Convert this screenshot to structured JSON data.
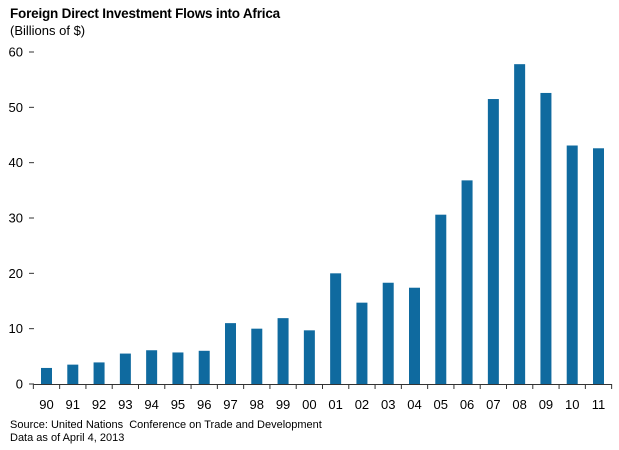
{
  "title": "Foreign Direct Investment Flows into Africa",
  "subtitle": "(Billions of $)",
  "source_line": "Source: United Nations  Conference on Trade and Development",
  "data_note": "Data as of April 4, 2013",
  "colors": {
    "bar": "#0f6a9f",
    "axis": "#333333",
    "grid": "#d0d0d0"
  },
  "chart_data": {
    "type": "bar",
    "title": "Foreign Direct Investment Flows into Africa",
    "subtitle": "(Billions of $)",
    "xlabel": "",
    "ylabel": "",
    "categories": [
      "90",
      "91",
      "92",
      "93",
      "94",
      "95",
      "96",
      "97",
      "98",
      "99",
      "00",
      "01",
      "02",
      "03",
      "04",
      "05",
      "06",
      "07",
      "08",
      "09",
      "10",
      "11"
    ],
    "values": [
      2.9,
      3.5,
      3.9,
      5.5,
      6.1,
      5.7,
      6.0,
      11.0,
      10.0,
      11.9,
      9.7,
      20.0,
      14.7,
      18.3,
      17.4,
      30.6,
      36.8,
      51.5,
      57.8,
      52.6,
      43.1,
      42.6
    ],
    "ylim": [
      0,
      60
    ],
    "yticks": [
      0,
      10,
      20,
      30,
      40,
      50,
      60
    ],
    "grid": false,
    "legend": "none"
  }
}
